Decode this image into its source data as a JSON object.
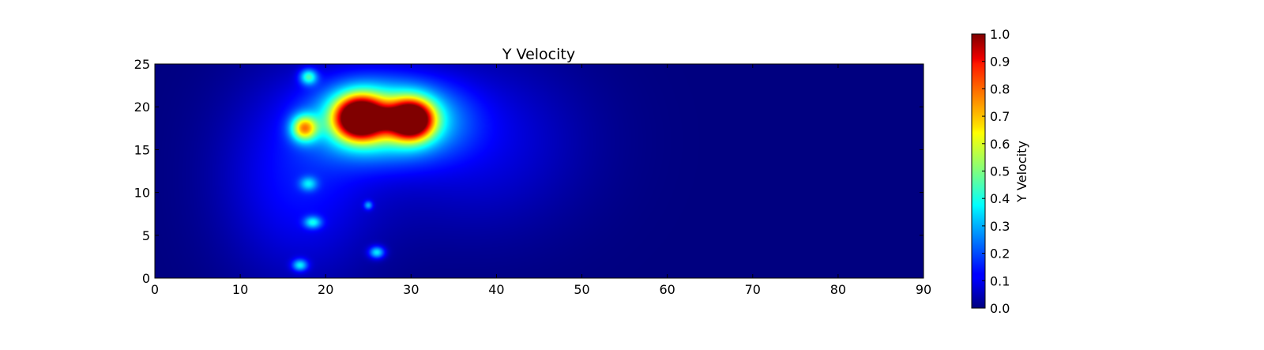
{
  "chart_data": {
    "type": "heatmap",
    "title": "Y Velocity",
    "xlim": [
      0,
      90
    ],
    "ylim": [
      0,
      25
    ],
    "x_ticks": [
      "0",
      "10",
      "20",
      "30",
      "40",
      "50",
      "60",
      "70",
      "80",
      "90"
    ],
    "y_ticks": [
      "0",
      "5",
      "10",
      "15",
      "20",
      "25"
    ],
    "colormap": "jet",
    "grid": false,
    "background_value": 0.0,
    "colorbar": {
      "label": "Y Velocity",
      "range": [
        0.0,
        1.0
      ],
      "ticks": [
        "0.0",
        "0.1",
        "0.2",
        "0.3",
        "0.4",
        "0.5",
        "0.6",
        "0.7",
        "0.8",
        "0.9",
        "1.0"
      ]
    },
    "features": [
      {
        "x": 24,
        "y": 18.8,
        "sx": 6.0,
        "sy": 4.5,
        "value": 0.3
      },
      {
        "x": 30,
        "y": 18.5,
        "sx": 6.5,
        "sy": 4.5,
        "value": 0.3
      },
      {
        "x": 24,
        "y": 18.7,
        "sx": 2.8,
        "sy": 2.4,
        "value": 1.05
      },
      {
        "x": 30,
        "y": 18.5,
        "sx": 2.5,
        "sy": 2.2,
        "value": 1.05
      },
      {
        "x": 27,
        "y": 18.6,
        "sx": 1.5,
        "sy": 0.8,
        "value": 0.7
      },
      {
        "x": 17.5,
        "y": 17.5,
        "sx": 1.5,
        "sy": 1.5,
        "value": 0.55
      },
      {
        "x": 18,
        "y": 23.5,
        "sx": 1.0,
        "sy": 0.9,
        "value": 0.35
      },
      {
        "x": 18,
        "y": 11.0,
        "sx": 1.0,
        "sy": 0.8,
        "value": 0.22
      },
      {
        "x": 18.5,
        "y": 6.5,
        "sx": 1.0,
        "sy": 0.7,
        "value": 0.28
      },
      {
        "x": 17.0,
        "y": 1.5,
        "sx": 0.9,
        "sy": 0.7,
        "value": 0.3
      },
      {
        "x": 26.0,
        "y": 3.0,
        "sx": 0.9,
        "sy": 0.7,
        "value": 0.32
      },
      {
        "x": 25.0,
        "y": 8.5,
        "sx": 0.5,
        "sy": 0.5,
        "value": 0.22
      },
      {
        "x": 17.0,
        "y": 12.0,
        "sx": 9.0,
        "sy": 12.0,
        "value": 0.14
      },
      {
        "x": 38.0,
        "y": 16.0,
        "sx": 12.0,
        "sy": 10.0,
        "value": 0.1
      }
    ]
  }
}
